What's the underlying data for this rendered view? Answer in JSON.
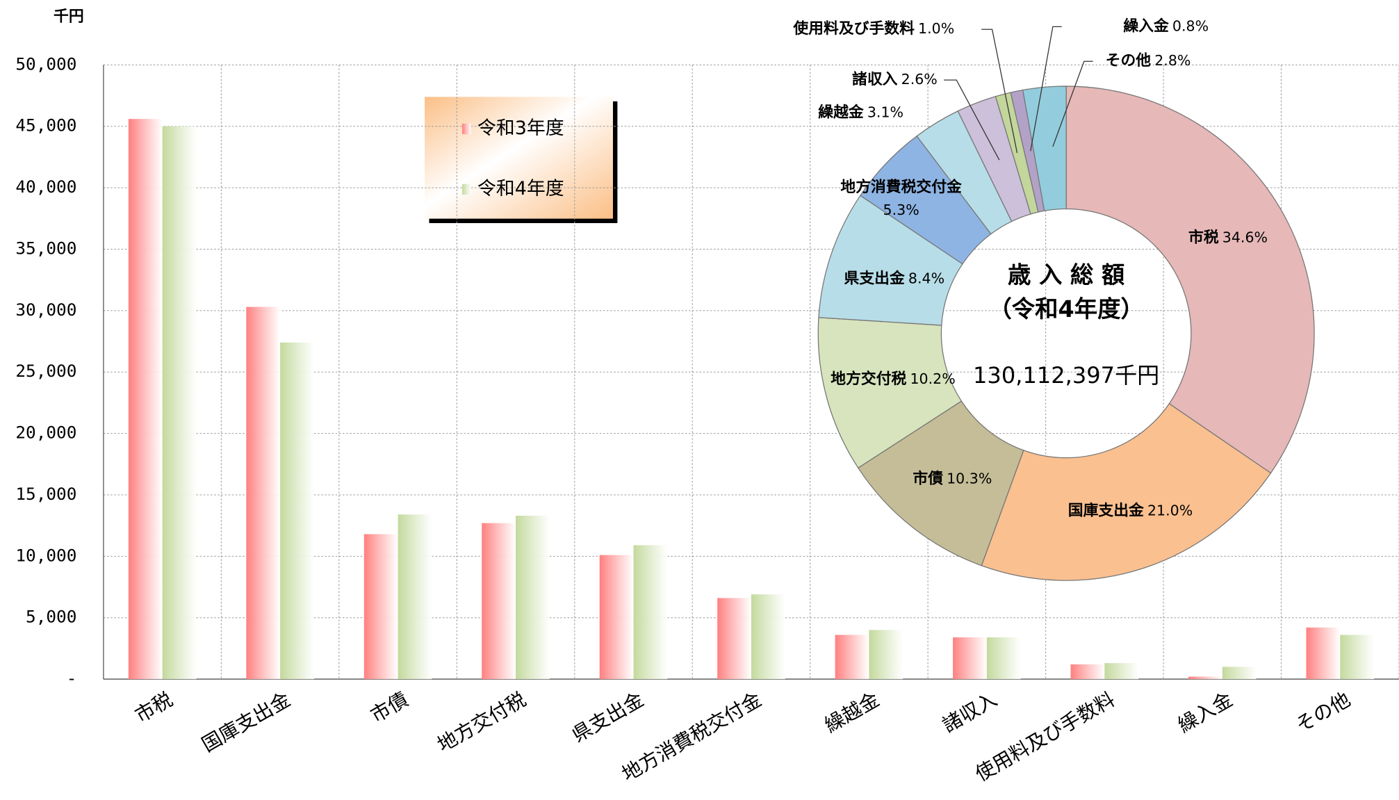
{
  "chart_data": [
    {
      "type": "bar",
      "y_label": "千円",
      "categories": [
        "市税",
        "国庫支出金",
        "市債",
        "地方交付税",
        "県支出金",
        "地方消費税交付金",
        "繰越金",
        "諸収入",
        "使用料及び手数料",
        "繰入金",
        "その他"
      ],
      "series": [
        {
          "name": "令和3年度",
          "color": "#ff7f7f",
          "values": [
            45600,
            30300,
            11800,
            12700,
            10100,
            6600,
            3600,
            3400,
            1200,
            200,
            4200
          ]
        },
        {
          "name": "令和4年度",
          "color": "#c3d99c",
          "values": [
            45000,
            27400,
            13400,
            13300,
            10900,
            6900,
            4000,
            3400,
            1300,
            1000,
            3600
          ]
        }
      ],
      "ylim": [
        0,
        50000
      ],
      "yticks": [
        {
          "value": 0,
          "label": "-"
        },
        {
          "value": 5000,
          "label": "5,000"
        },
        {
          "value": 10000,
          "label": "10,000"
        },
        {
          "value": 15000,
          "label": "15,000"
        },
        {
          "value": 20000,
          "label": "20,000"
        },
        {
          "value": 25000,
          "label": "25,000"
        },
        {
          "value": 30000,
          "label": "30,000"
        },
        {
          "value": 35000,
          "label": "35,000"
        },
        {
          "value": 40000,
          "label": "40,000"
        },
        {
          "value": 45000,
          "label": "45,000"
        },
        {
          "value": 50000,
          "label": "50,000"
        }
      ],
      "grid": true
    },
    {
      "type": "pie",
      "donut": true,
      "annotations": [
        "歳 入 総 額",
        "（令和4年度）",
        "130,112,397千円"
      ],
      "categories": [
        "市税",
        "国庫支出金",
        "市債",
        "地方交付税",
        "県支出金",
        "地方消費税交付金",
        "繰越金",
        "諸収入",
        "使用料及び手数料",
        "繰入金",
        "その他"
      ],
      "values": [
        34.6,
        21.0,
        10.3,
        10.2,
        8.4,
        5.3,
        3.1,
        2.6,
        1.0,
        0.8,
        2.8
      ],
      "value_labels": [
        "34.6%",
        "21.0%",
        "10.3%",
        "10.2%",
        "8.4%",
        "5.3%",
        "3.1%",
        "2.6%",
        "1.0%",
        "0.8%",
        "2.8%"
      ],
      "colors": [
        "#e6b8b7",
        "#fac090",
        "#c4bd97",
        "#d7e4bd",
        "#b7dde8",
        "#8eb4e3",
        "#b7dde8",
        "#ccc0da",
        "#c3d69b",
        "#b3a2c7",
        "#93cddd"
      ]
    }
  ]
}
